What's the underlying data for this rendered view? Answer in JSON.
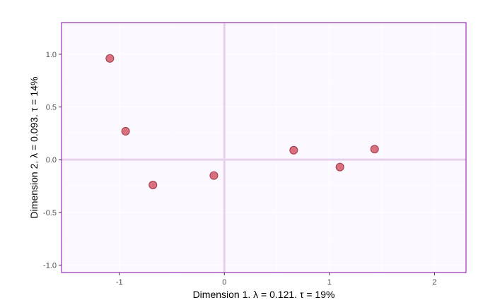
{
  "chart_data": {
    "type": "scatter",
    "xlabel": "Dimension 1.   λ = 0.121.  τ = 19%",
    "ylabel": "Dimension 2.   λ = 0.093.  τ = 14%",
    "xlim": [
      -1.55,
      2.3
    ],
    "ylim": [
      -1.07,
      1.3
    ],
    "x_ticks": [
      -1,
      0,
      1,
      2
    ],
    "x_tick_labels": [
      "-1",
      "0",
      "1",
      "2"
    ],
    "y_ticks": [
      -1.0,
      -0.5,
      0.0,
      0.5,
      1.0
    ],
    "y_tick_labels": [
      "-1.0",
      "-0.5",
      "0.0",
      "0.5",
      "1.0"
    ],
    "grid": true,
    "reference_lines": {
      "x": 0,
      "y": 0
    },
    "points": [
      {
        "x": -1.09,
        "y": 0.96
      },
      {
        "x": -0.94,
        "y": 0.27
      },
      {
        "x": -0.68,
        "y": -0.24
      },
      {
        "x": -0.1,
        "y": -0.15
      },
      {
        "x": 0.66,
        "y": 0.09
      },
      {
        "x": 1.1,
        "y": -0.07
      },
      {
        "x": 1.43,
        "y": 0.1
      }
    ],
    "colors": {
      "panel_background": "#fcf8ff",
      "panel_border": "#9b30b8",
      "grid": "#ffffff",
      "reference_line": "#e6d2ea",
      "point_fill": "#d9707e",
      "point_stroke": "#a03a48"
    }
  }
}
